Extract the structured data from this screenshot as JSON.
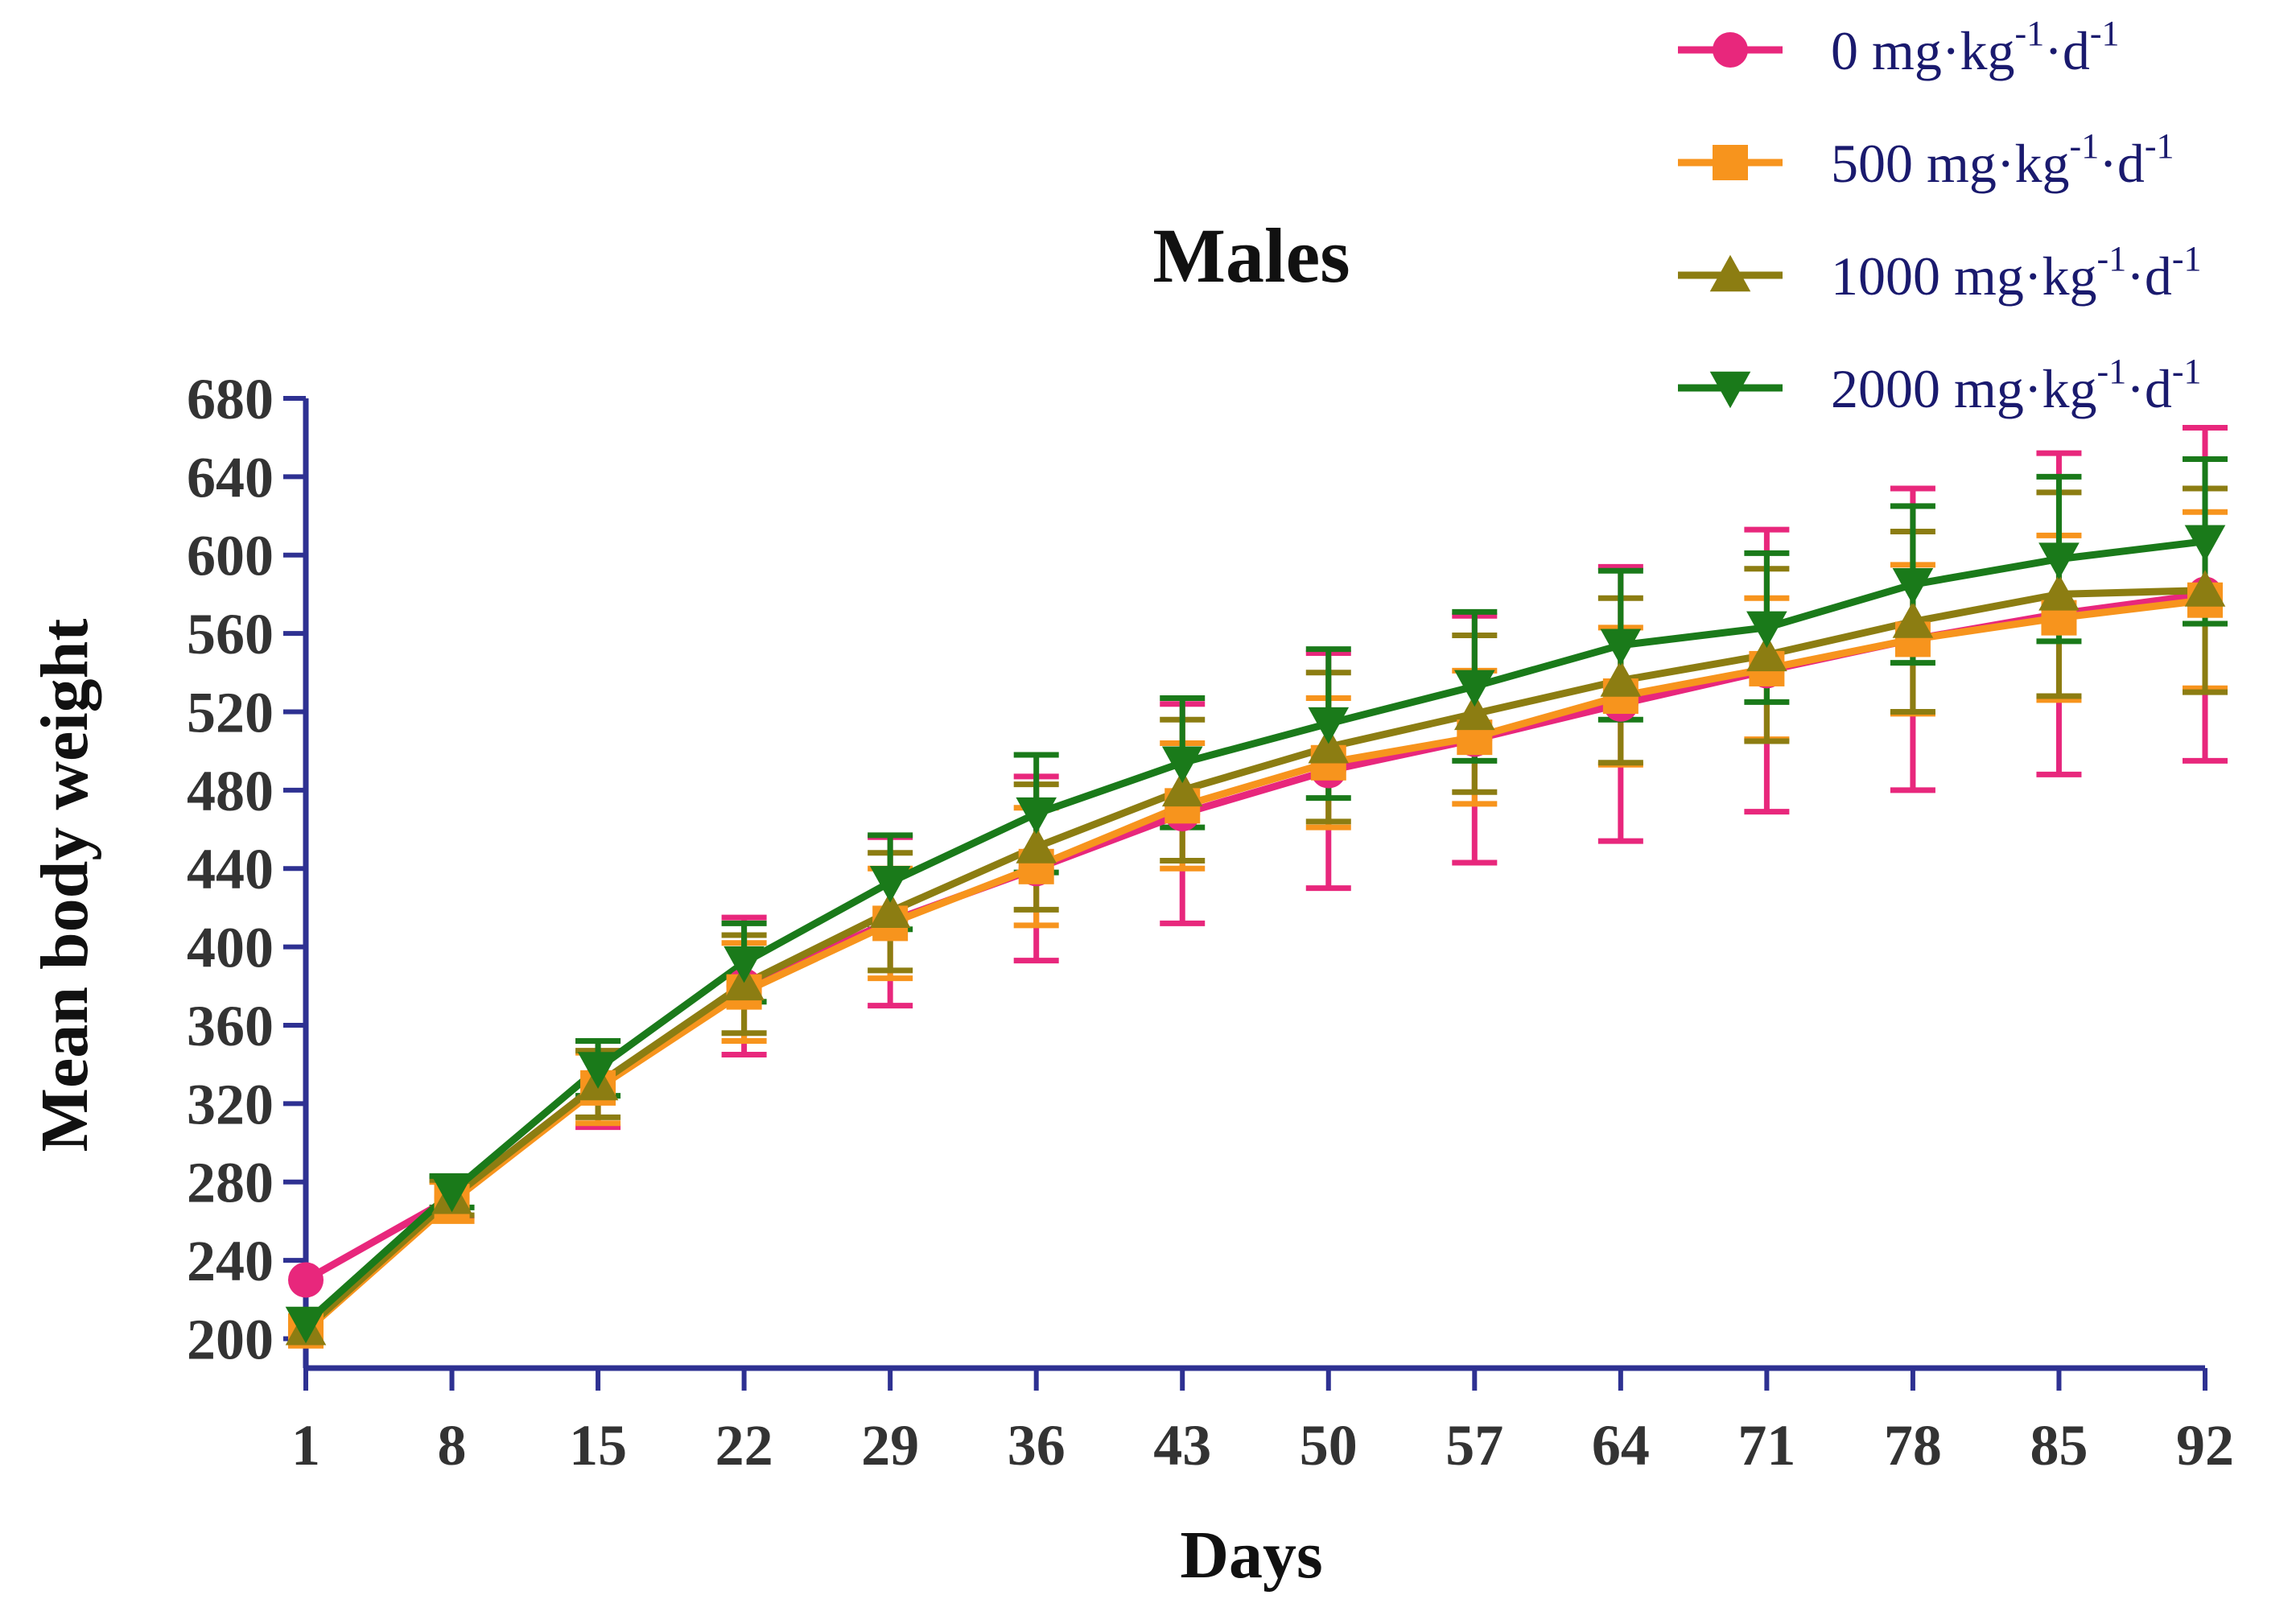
{
  "chart_data": {
    "type": "line",
    "title": "Males",
    "xlabel": "Days",
    "ylabel": "Mean body weight",
    "x": [
      1,
      8,
      15,
      22,
      29,
      36,
      43,
      50,
      57,
      64,
      71,
      78,
      85,
      92
    ],
    "xticks": [
      "1",
      "8",
      "15",
      "22",
      "29",
      "36",
      "43",
      "50",
      "57",
      "64",
      "71",
      "78",
      "85",
      "92"
    ],
    "yticks": [
      "200",
      "240",
      "280",
      "320",
      "360",
      "400",
      "440",
      "480",
      "520",
      "560",
      "600",
      "640",
      "680"
    ],
    "xlim": [
      1,
      92
    ],
    "ylim": [
      185,
      680
    ],
    "grid": false,
    "legend_position": "top-right",
    "error_bars": true,
    "axis_color": "#2e3192",
    "series": [
      {
        "name": "0 mg·kg-1·d-1",
        "legend": {
          "pre": "0 mg·kg",
          "sup1": "-1",
          "mid": "·d",
          "sup2": "-1"
        },
        "color": "#e8277c",
        "marker": "circle",
        "values": [
          230,
          272,
          330,
          380,
          413,
          440,
          468,
          490,
          506,
          524,
          541,
          557,
          570,
          580
        ],
        "errors": [
          0,
          10,
          22,
          35,
          43,
          47,
          56,
          60,
          63,
          70,
          72,
          77,
          82,
          85
        ]
      },
      {
        "name": "500 mg·kg-1·d-1",
        "legend": {
          "pre": "500 mg·kg",
          "sup1": "-1",
          "mid": "·d",
          "sup2": "-1"
        },
        "color": "#f7941d",
        "marker": "square",
        "values": [
          204,
          270,
          328,
          377,
          412,
          441,
          472,
          494,
          507,
          528,
          542,
          557,
          568,
          577
        ],
        "errors": [
          0,
          10,
          18,
          25,
          28,
          30,
          32,
          33,
          34,
          35,
          36,
          38,
          42,
          45
        ]
      },
      {
        "name": "1000 mg·kg-1·d-1",
        "legend": {
          "pre": "1000 mg·kg",
          "sup1": "-1",
          "mid": "·d",
          "sup2": "-1"
        },
        "color": "#8c7d12",
        "marker": "triangle-up",
        "values": [
          205,
          272,
          330,
          381,
          418,
          451,
          480,
          502,
          519,
          536,
          549,
          566,
          580,
          582
        ],
        "errors": [
          0,
          9,
          17,
          25,
          30,
          32,
          36,
          38,
          40,
          42,
          44,
          46,
          52,
          52
        ]
      },
      {
        "name": "2000 mg·kg-1·d-1",
        "legend": {
          "pre": "2000 mg·kg",
          "sup1": "-1",
          "mid": "·d",
          "sup2": "-1"
        },
        "color": "#1a7a1a",
        "marker": "triangle-down",
        "values": [
          208,
          275,
          338,
          392,
          433,
          468,
          494,
          514,
          533,
          554,
          563,
          585,
          598,
          607
        ],
        "errors": [
          0,
          8,
          14,
          20,
          24,
          30,
          33,
          38,
          38,
          38,
          38,
          40,
          42,
          42
        ]
      }
    ]
  }
}
